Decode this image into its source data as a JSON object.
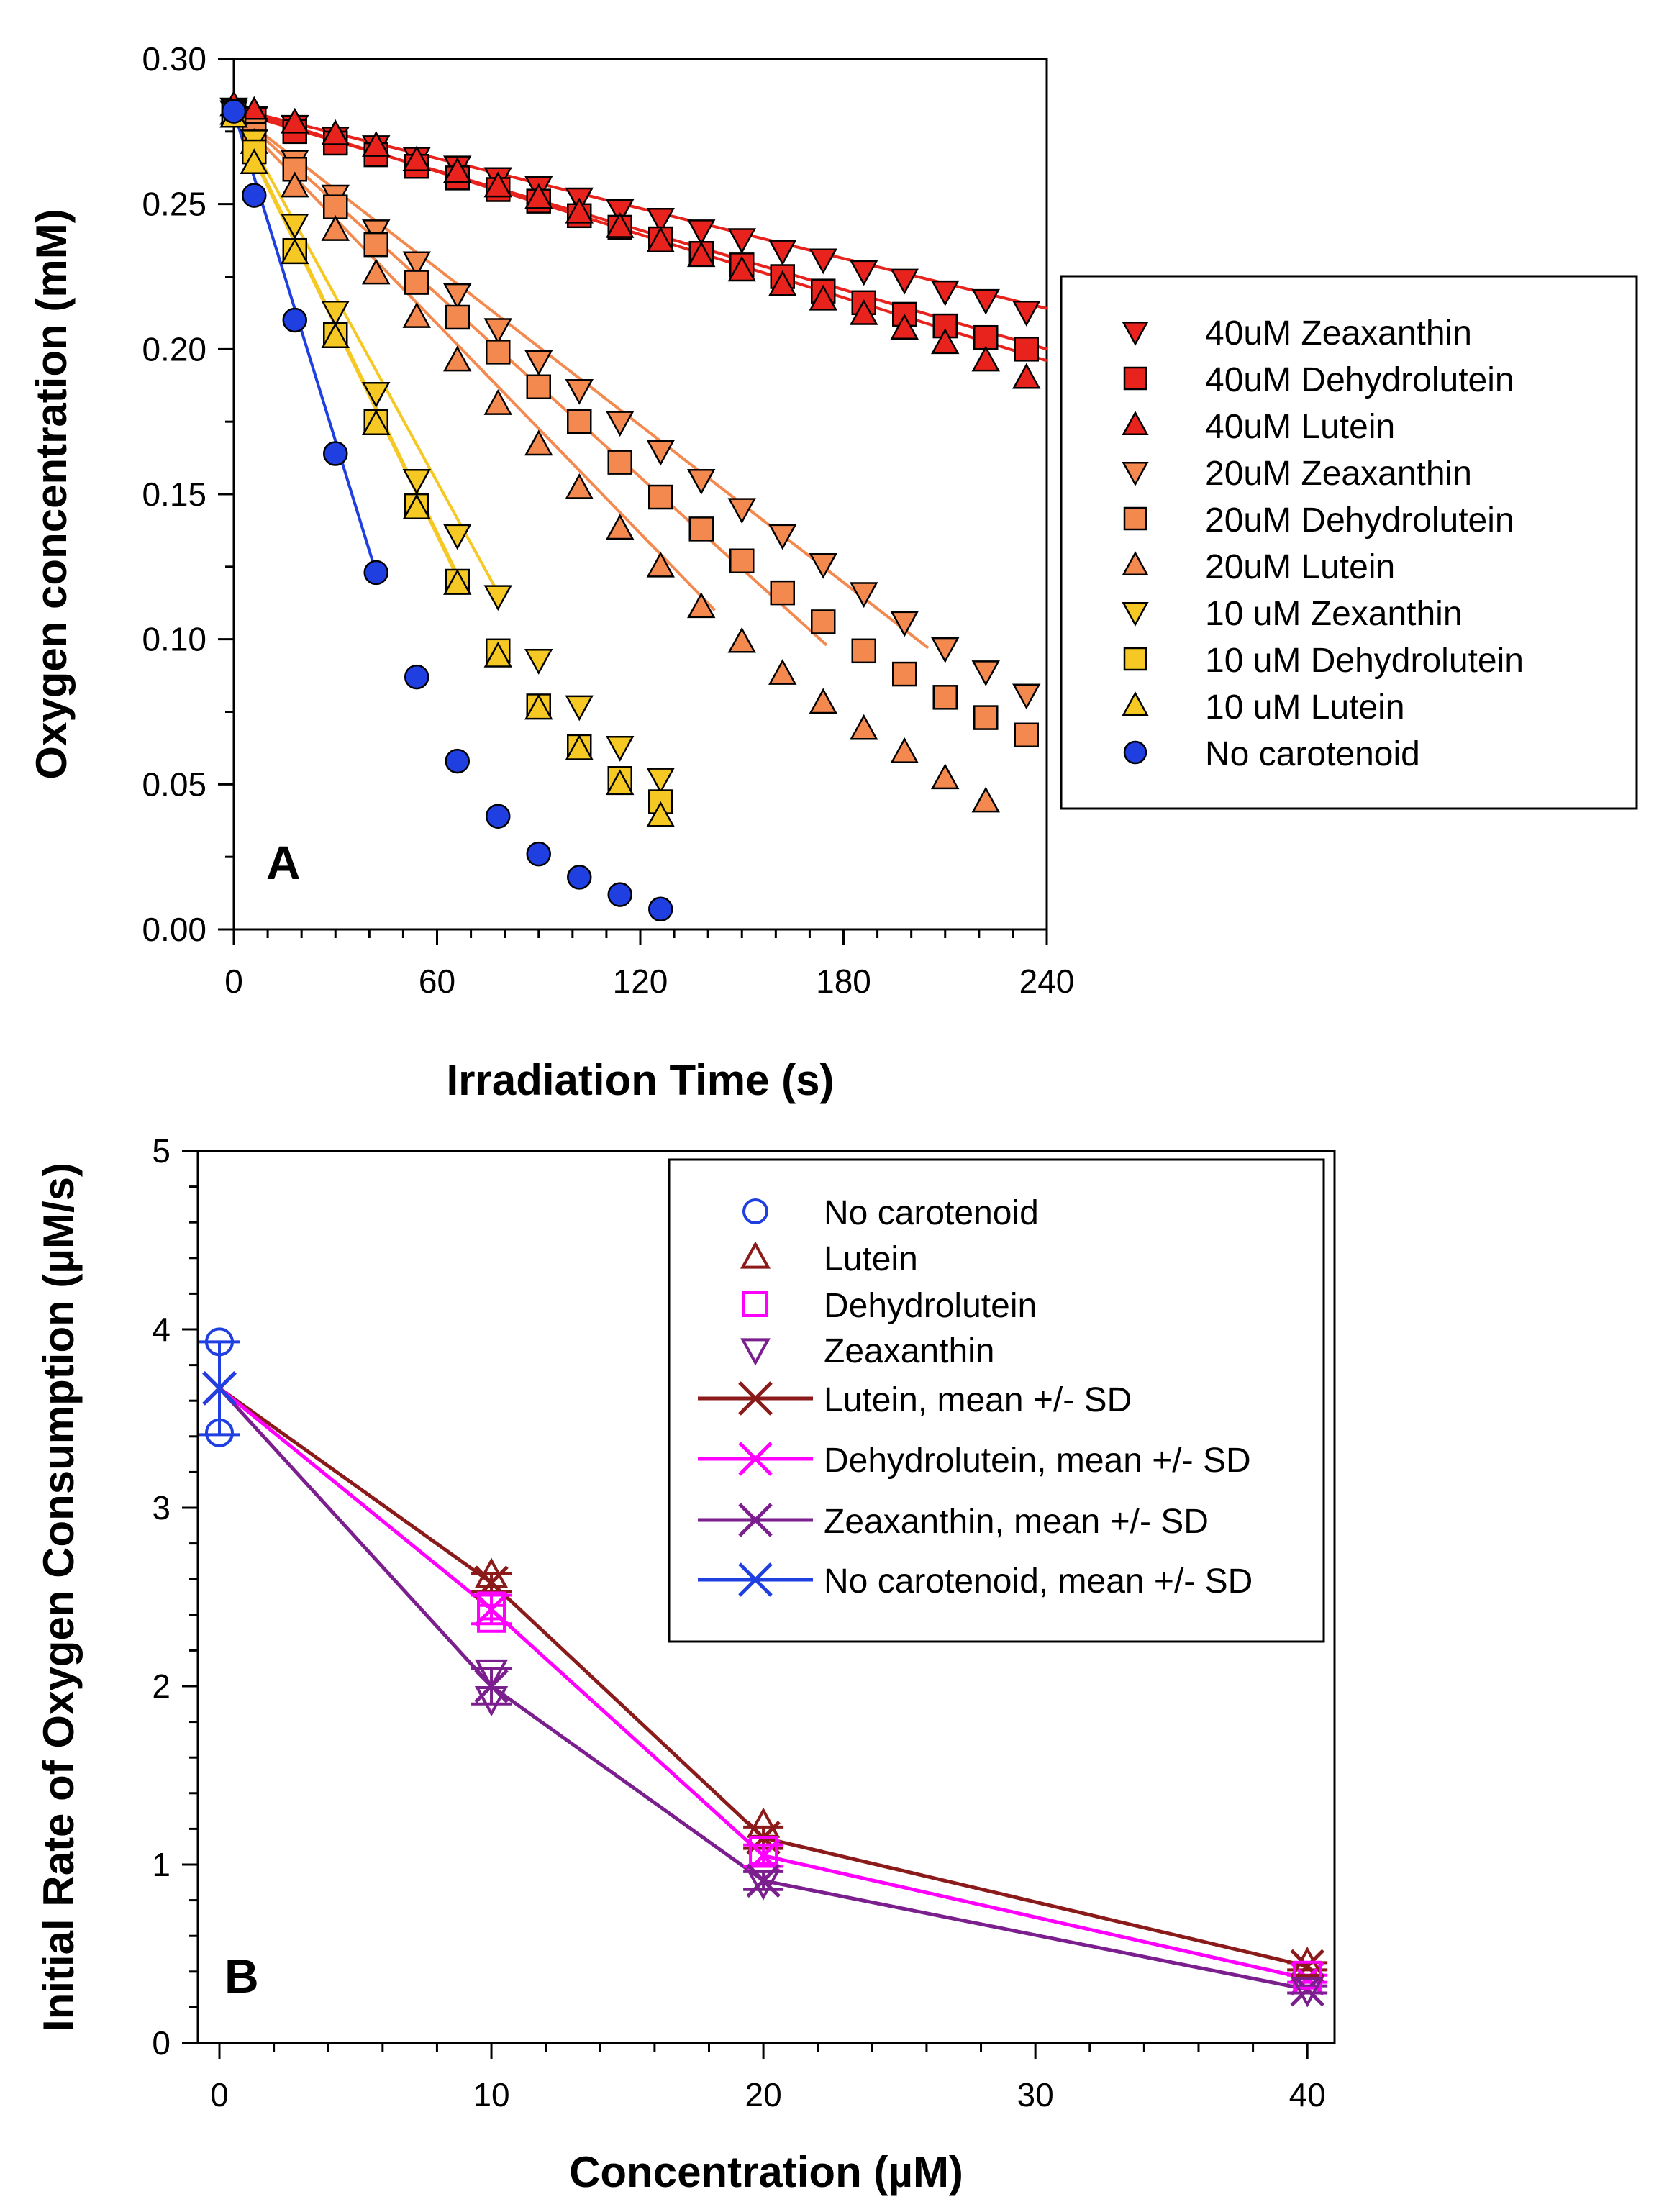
{
  "chart_data": [
    {
      "id": "A",
      "type": "scatter",
      "panel_label": "A",
      "xlabel": "Irradiation Time (s)",
      "ylabel": "Oxygen concentration (mM)",
      "xlim": [
        0,
        240
      ],
      "ylim": [
        0,
        0.3
      ],
      "xticks": [
        0,
        60,
        120,
        180,
        240
      ],
      "xtick_labels": [
        "0",
        "60",
        "120",
        "180",
        "240"
      ],
      "yticks": [
        0,
        0.05,
        0.1,
        0.15,
        0.2,
        0.25,
        0.3
      ],
      "ytick_labels": [
        "0.00",
        "0.05",
        "0.10",
        "0.15",
        "0.20",
        "0.25",
        "0.30"
      ],
      "legend_position": "right",
      "series": [
        {
          "name": "40uM Zeaxanthin",
          "marker": "triangle-down",
          "fill": "#e8221c",
          "line": "#e8221c",
          "x": [
            0,
            6,
            18,
            30,
            42,
            54,
            66,
            78,
            90,
            102,
            114,
            126,
            138,
            150,
            162,
            174,
            186,
            198,
            210,
            222,
            234
          ],
          "y": [
            0.283,
            0.28,
            0.277,
            0.273,
            0.27,
            0.266,
            0.263,
            0.259,
            0.256,
            0.252,
            0.248,
            0.245,
            0.241,
            0.238,
            0.234,
            0.231,
            0.227,
            0.224,
            0.22,
            0.217,
            0.213
          ],
          "fit": [
            [
              0,
              0.283
            ],
            [
              240,
              0.214
            ]
          ]
        },
        {
          "name": "40uM Dehydrolutein",
          "marker": "square",
          "fill": "#e8221c",
          "line": "#e8221c",
          "x": [
            0,
            6,
            18,
            30,
            42,
            54,
            66,
            78,
            90,
            102,
            114,
            126,
            138,
            150,
            162,
            174,
            186,
            198,
            210,
            222,
            234
          ],
          "y": [
            0.281,
            0.279,
            0.275,
            0.271,
            0.267,
            0.263,
            0.259,
            0.255,
            0.251,
            0.246,
            0.242,
            0.238,
            0.233,
            0.229,
            0.225,
            0.22,
            0.216,
            0.212,
            0.208,
            0.204,
            0.2
          ],
          "fit": [
            [
              0,
              0.282
            ],
            [
              240,
              0.2
            ]
          ]
        },
        {
          "name": "40uM Lutein",
          "marker": "triangle-up",
          "fill": "#e8221c",
          "line": "#e8221c",
          "x": [
            0,
            6,
            18,
            30,
            42,
            54,
            66,
            78,
            90,
            102,
            114,
            126,
            138,
            150,
            162,
            174,
            186,
            198,
            210,
            222,
            234
          ],
          "y": [
            0.284,
            0.282,
            0.278,
            0.274,
            0.27,
            0.265,
            0.261,
            0.256,
            0.252,
            0.247,
            0.242,
            0.237,
            0.232,
            0.227,
            0.222,
            0.217,
            0.212,
            0.207,
            0.202,
            0.196,
            0.19
          ],
          "fit": [
            [
              0,
              0.283
            ],
            [
              240,
              0.196
            ]
          ]
        },
        {
          "name": "20uM Zeaxanthin",
          "marker": "triangle-down",
          "fill": "#f4894f",
          "line": "#f4894f",
          "x": [
            0,
            6,
            18,
            30,
            42,
            54,
            66,
            78,
            90,
            102,
            114,
            126,
            138,
            150,
            162,
            174,
            186,
            198,
            210,
            222,
            234
          ],
          "y": [
            0.282,
            0.276,
            0.265,
            0.253,
            0.241,
            0.23,
            0.219,
            0.207,
            0.196,
            0.186,
            0.175,
            0.165,
            0.155,
            0.145,
            0.136,
            0.126,
            0.116,
            0.106,
            0.097,
            0.089,
            0.081
          ],
          "fit": [
            [
              0,
              0.282
            ],
            [
              205,
              0.097
            ]
          ]
        },
        {
          "name": "20uM Dehydrolutein",
          "marker": "square",
          "fill": "#f4894f",
          "line": "#f4894f",
          "x": [
            0,
            6,
            18,
            30,
            42,
            54,
            66,
            78,
            90,
            102,
            114,
            126,
            138,
            150,
            162,
            174,
            186,
            198,
            210,
            222,
            234
          ],
          "y": [
            0.282,
            0.274,
            0.262,
            0.249,
            0.236,
            0.223,
            0.211,
            0.199,
            0.187,
            0.175,
            0.161,
            0.149,
            0.138,
            0.127,
            0.116,
            0.106,
            0.096,
            0.088,
            0.08,
            0.073,
            0.067
          ],
          "fit": [
            [
              0,
              0.282
            ],
            [
              175,
              0.098
            ]
          ]
        },
        {
          "name": "20uM Lutein",
          "marker": "triangle-up",
          "fill": "#f4894f",
          "line": "#f4894f",
          "x": [
            0,
            6,
            18,
            30,
            42,
            54,
            66,
            78,
            90,
            102,
            114,
            126,
            138,
            150,
            162,
            174,
            186,
            198,
            210,
            222
          ],
          "y": [
            0.281,
            0.271,
            0.256,
            0.241,
            0.226,
            0.211,
            0.196,
            0.181,
            0.167,
            0.152,
            0.138,
            0.125,
            0.111,
            0.099,
            0.088,
            0.078,
            0.069,
            0.061,
            0.052,
            0.044
          ],
          "fit": [
            [
              0,
              0.281
            ],
            [
              142,
              0.11
            ]
          ]
        },
        {
          "name": "10 uM Zexanthin",
          "marker": "triangle-down",
          "fill": "#f5c823",
          "line": "#f5c823",
          "x": [
            0,
            6,
            18,
            30,
            42,
            54,
            66,
            78,
            90,
            102,
            114,
            126
          ],
          "y": [
            0.282,
            0.272,
            0.243,
            0.213,
            0.185,
            0.155,
            0.136,
            0.115,
            0.093,
            0.077,
            0.063,
            0.052
          ],
          "fit": [
            [
              0,
              0.282
            ],
            [
              78,
              0.116
            ]
          ]
        },
        {
          "name": "10 uM Dehydrolutein",
          "marker": "square",
          "fill": "#f5c823",
          "line": "#f5c823",
          "x": [
            0,
            6,
            18,
            30,
            42,
            54,
            66,
            78,
            90,
            102,
            114,
            126
          ],
          "y": [
            0.281,
            0.268,
            0.234,
            0.205,
            0.175,
            0.146,
            0.12,
            0.096,
            0.077,
            0.063,
            0.052,
            0.044
          ],
          "fit": [
            [
              0,
              0.281
            ],
            [
              67,
              0.12
            ]
          ]
        },
        {
          "name": "10 uM Lutein",
          "marker": "triangle-up",
          "fill": "#f5c823",
          "line": "#f5c823",
          "x": [
            0,
            6,
            18,
            30,
            42,
            54,
            66,
            78,
            90,
            102,
            114,
            126
          ],
          "y": [
            0.28,
            0.264,
            0.233,
            0.204,
            0.174,
            0.145,
            0.119,
            0.094,
            0.076,
            0.062,
            0.05,
            0.039
          ],
          "fit": [
            [
              0,
              0.28
            ],
            [
              67,
              0.119
            ]
          ]
        },
        {
          "name": "No carotenoid",
          "marker": "circle",
          "fill": "#1f3fe0",
          "line": "#1f3fe0",
          "x": [
            0,
            6,
            18,
            30,
            42,
            54,
            66,
            78,
            90,
            102,
            114,
            126
          ],
          "y": [
            0.282,
            0.253,
            0.21,
            0.164,
            0.123,
            0.087,
            0.058,
            0.039,
            0.026,
            0.018,
            0.012,
            0.007
          ],
          "fit": [
            [
              0,
              0.282
            ],
            [
              42,
              0.123
            ]
          ]
        }
      ]
    },
    {
      "id": "B",
      "type": "line",
      "panel_label": "B",
      "xlabel": "Concentration (µM)",
      "ylabel": "Initial Rate of Oxygen Consumption (µM/s)",
      "xlim": [
        0,
        41
      ],
      "ylim": [
        0,
        5
      ],
      "xticks": [
        0,
        10,
        20,
        30,
        40
      ],
      "xtick_labels": [
        "0",
        "10",
        "20",
        "30",
        "40"
      ],
      "yticks": [
        0,
        1,
        2,
        3,
        4,
        5
      ],
      "ytick_labels": [
        "0",
        "1",
        "2",
        "3",
        "4",
        "5"
      ],
      "legend_position": "top-right",
      "scatter_series": [
        {
          "name": "No carotenoid",
          "marker": "circle",
          "color": "#1f3fe0",
          "x": [
            0,
            0
          ],
          "y": [
            3.93,
            3.42
          ]
        },
        {
          "name": "Lutein",
          "marker": "triangle-up",
          "color": "#8b1a1a",
          "x": [
            10,
            20,
            40
          ],
          "y": [
            2.62,
            1.22,
            0.44
          ]
        },
        {
          "name": "Dehydrolutein",
          "marker": "square",
          "color": "#ff00ff",
          "x": [
            10,
            10,
            20,
            40
          ],
          "y": [
            2.45,
            2.38,
            1.08,
            0.38
          ]
        },
        {
          "name": "Zeaxanthin",
          "marker": "triangle-down",
          "color": "#7b1f8e",
          "x": [
            10,
            10,
            20,
            40
          ],
          "y": [
            2.08,
            1.93,
            0.9,
            0.3
          ]
        }
      ],
      "mean_series": [
        {
          "name": "Lutein, mean +/- SD",
          "color": "#8b1a1a",
          "x": [
            0,
            10,
            20,
            40
          ],
          "y": [
            3.67,
            2.58,
            1.15,
            0.43
          ],
          "sd": [
            0,
            0.05,
            0.06,
            0.02
          ]
        },
        {
          "name": "Dehydrolutein, mean +/- SD",
          "color": "#ff00ff",
          "x": [
            0,
            10,
            20,
            40
          ],
          "y": [
            3.67,
            2.43,
            1.05,
            0.36
          ],
          "sd": [
            0,
            0.08,
            0.06,
            0.02
          ]
        },
        {
          "name": "Zeaxanthin, mean +/- SD",
          "color": "#7b1f8e",
          "x": [
            0,
            10,
            20,
            40
          ],
          "y": [
            3.67,
            2.0,
            0.91,
            0.3
          ],
          "sd": [
            0,
            0.1,
            0.05,
            0.02
          ]
        },
        {
          "name": "No carotenoid, mean +/- SD",
          "color": "#1f3fe0",
          "x": [
            0
          ],
          "y": [
            3.67
          ],
          "sd": [
            0.26
          ]
        }
      ]
    }
  ]
}
